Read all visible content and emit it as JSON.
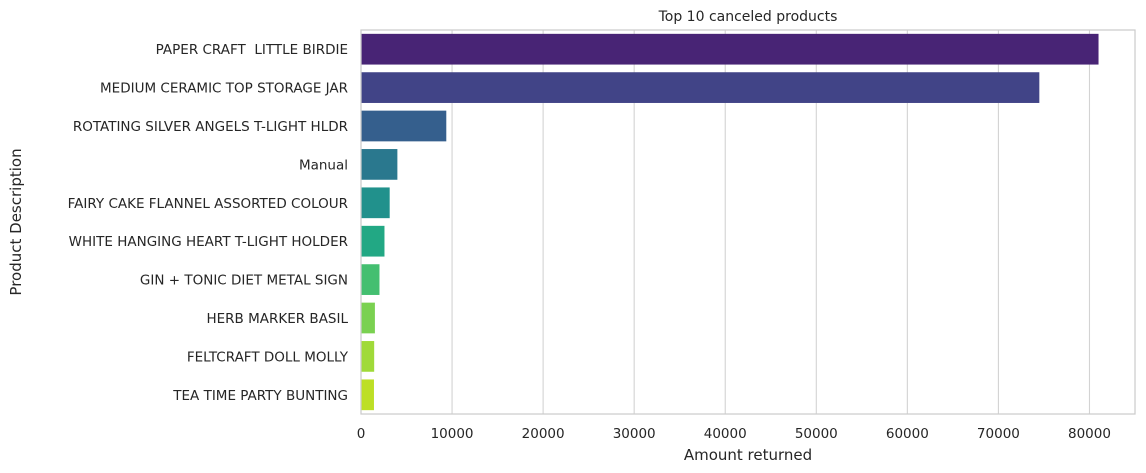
{
  "chart_data": {
    "type": "bar",
    "orientation": "horizontal",
    "title": "Top 10 canceled products",
    "xlabel": "Amount returned",
    "ylabel": "Product Description",
    "xlim": [
      0,
      85000
    ],
    "xticks": [
      0,
      10000,
      20000,
      30000,
      40000,
      50000,
      60000,
      70000,
      80000
    ],
    "xtick_labels": [
      "0",
      "10000",
      "20000",
      "30000",
      "40000",
      "50000",
      "60000",
      "70000",
      "80000"
    ],
    "grid": true,
    "categories": [
      "PAPER CRAFT  LITTLE BIRDIE",
      "MEDIUM CERAMIC TOP STORAGE JAR",
      "ROTATING SILVER ANGELS T-LIGHT HLDR",
      "Manual",
      "FAIRY CAKE FLANNEL ASSORTED COLOUR",
      "WHITE HANGING HEART T-LIGHT HOLDER",
      "GIN + TONIC DIET METAL SIGN",
      "HERB MARKER BASIL",
      "FELTCRAFT DOLL MOLLY",
      "TEA TIME PARTY BUNTING"
    ],
    "values": [
      80995,
      74494,
      9367,
      3995,
      3150,
      2578,
      2030,
      1527,
      1447,
      1424
    ],
    "colors": [
      "#482475",
      "#414487",
      "#355f8d",
      "#2a788e",
      "#21918c",
      "#22a884",
      "#44bf70",
      "#7ad151",
      "#a0da39",
      "#bddf26"
    ]
  }
}
